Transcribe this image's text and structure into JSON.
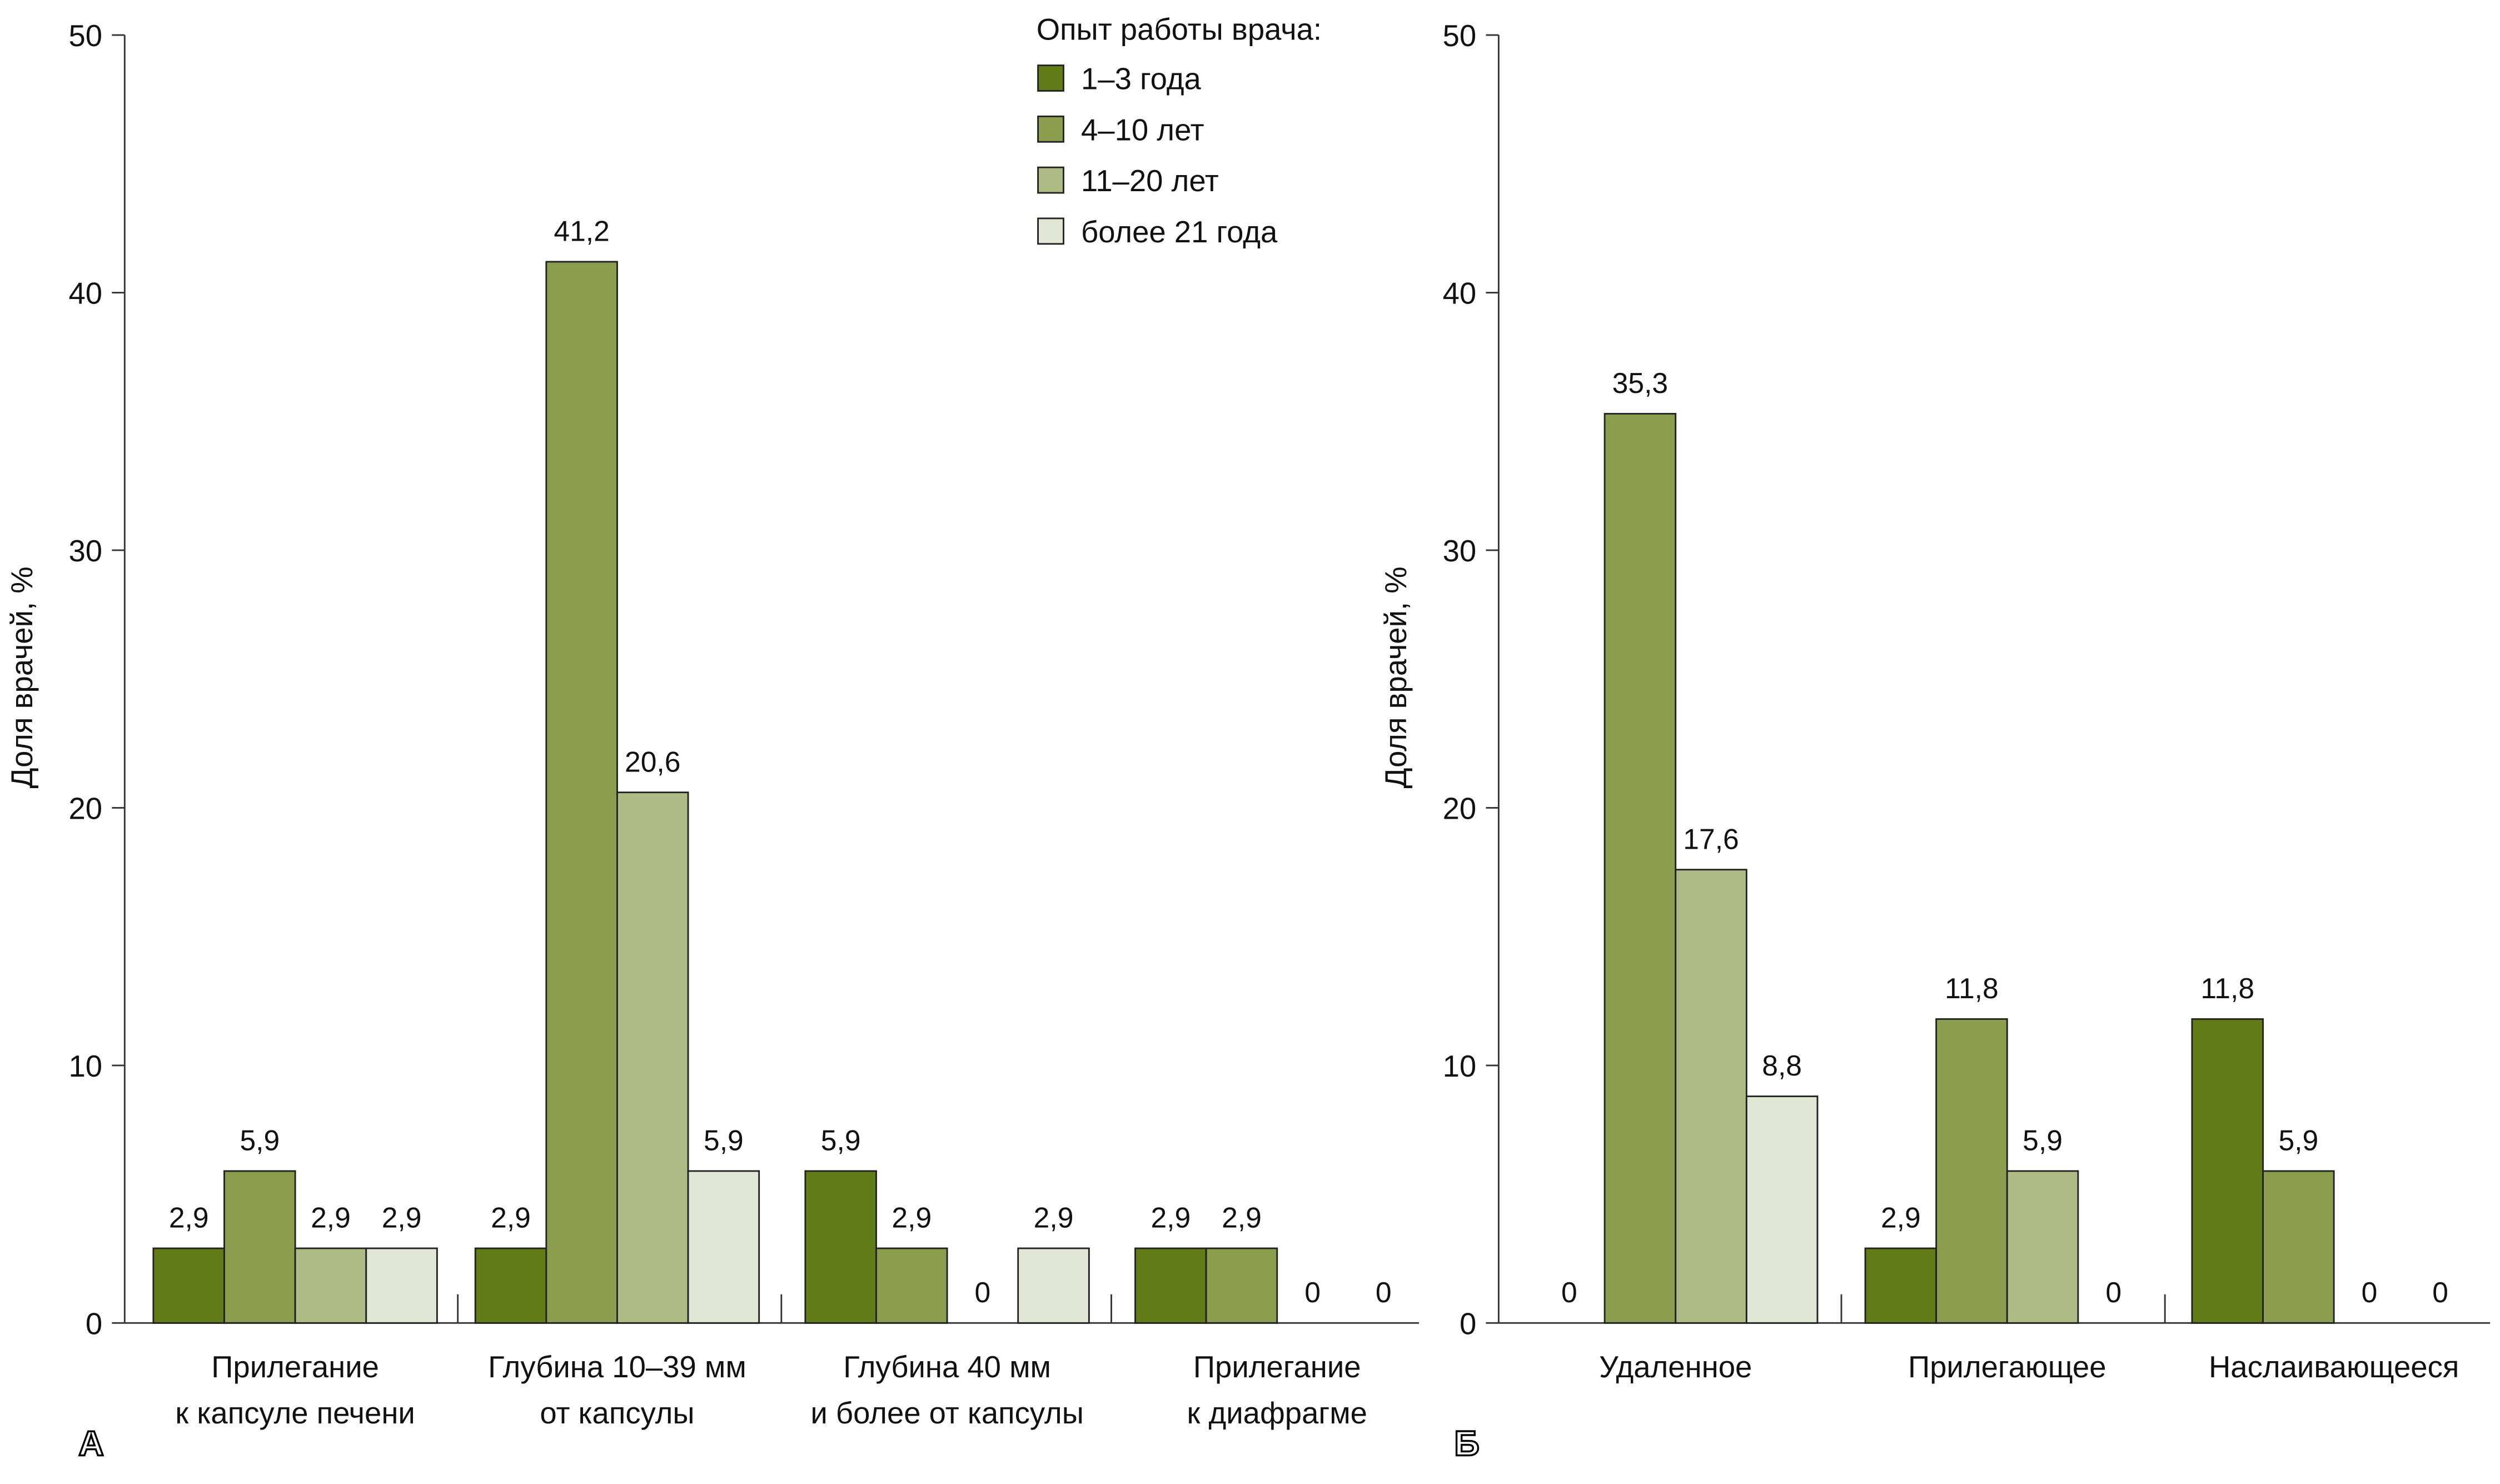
{
  "chart_data": [
    {
      "type": "bar",
      "panel_label": "А",
      "ylabel": "Доля врачей, %",
      "ylim": [
        0,
        50
      ],
      "yticks": [
        "0",
        "10",
        "20",
        "30",
        "40",
        "50"
      ],
      "categories": [
        [
          "Прилегание",
          "к капсуле печени"
        ],
        [
          "Глубина 10–39 мм",
          "от капсулы"
        ],
        [
          "Глубина 40 мм",
          "и более от капсулы"
        ],
        [
          "Прилегание",
          "к диафрагме"
        ]
      ],
      "series": [
        {
          "name": "1–3 года",
          "values": [
            2.9,
            2.9,
            5.9,
            2.9
          ],
          "labels": [
            "2,9",
            "2,9",
            "5,9",
            "2,9"
          ]
        },
        {
          "name": "4–10 лет",
          "values": [
            5.9,
            41.2,
            2.9,
            2.9
          ],
          "labels": [
            "5,9",
            "41,2",
            "2,9",
            "2,9"
          ]
        },
        {
          "name": "11–20 лет",
          "values": [
            2.9,
            20.6,
            0,
            0
          ],
          "labels": [
            "2,9",
            "20,6",
            "0",
            "0"
          ]
        },
        {
          "name": "более 21 года",
          "values": [
            2.9,
            5.9,
            2.9,
            0
          ],
          "labels": [
            "2,9",
            "5,9",
            "2,9",
            "0"
          ]
        }
      ]
    },
    {
      "type": "bar",
      "panel_label": "Б",
      "ylabel": "Доля врачей, %",
      "ylim": [
        0,
        50
      ],
      "yticks": [
        "0",
        "10",
        "20",
        "30",
        "40",
        "50"
      ],
      "categories": [
        [
          "Удаленное"
        ],
        [
          "Прилегающее"
        ],
        [
          "Наслаивающееся"
        ]
      ],
      "series": [
        {
          "name": "1–3 года",
          "values": [
            0,
            2.9,
            11.8
          ],
          "labels": [
            "0",
            "2,9",
            "11,8"
          ]
        },
        {
          "name": "4–10 лет",
          "values": [
            35.3,
            11.8,
            5.9
          ],
          "labels": [
            "35,3",
            "11,8",
            "5,9"
          ]
        },
        {
          "name": "11–20 лет",
          "values": [
            17.6,
            5.9,
            0
          ],
          "labels": [
            "17,6",
            "5,9",
            "0"
          ]
        },
        {
          "name": "более 21 года",
          "values": [
            8.8,
            0,
            0
          ],
          "labels": [
            "8,8",
            "0",
            "0"
          ]
        }
      ]
    }
  ],
  "legend": {
    "title": "Опыт работы врача:",
    "items": [
      "1–3 года",
      "4–10 лет",
      "11–20 лет",
      "более 21 года"
    ]
  },
  "colors": [
    "#617b16",
    "#8b9e4f",
    "#aebb84",
    "#e2e7d5"
  ]
}
